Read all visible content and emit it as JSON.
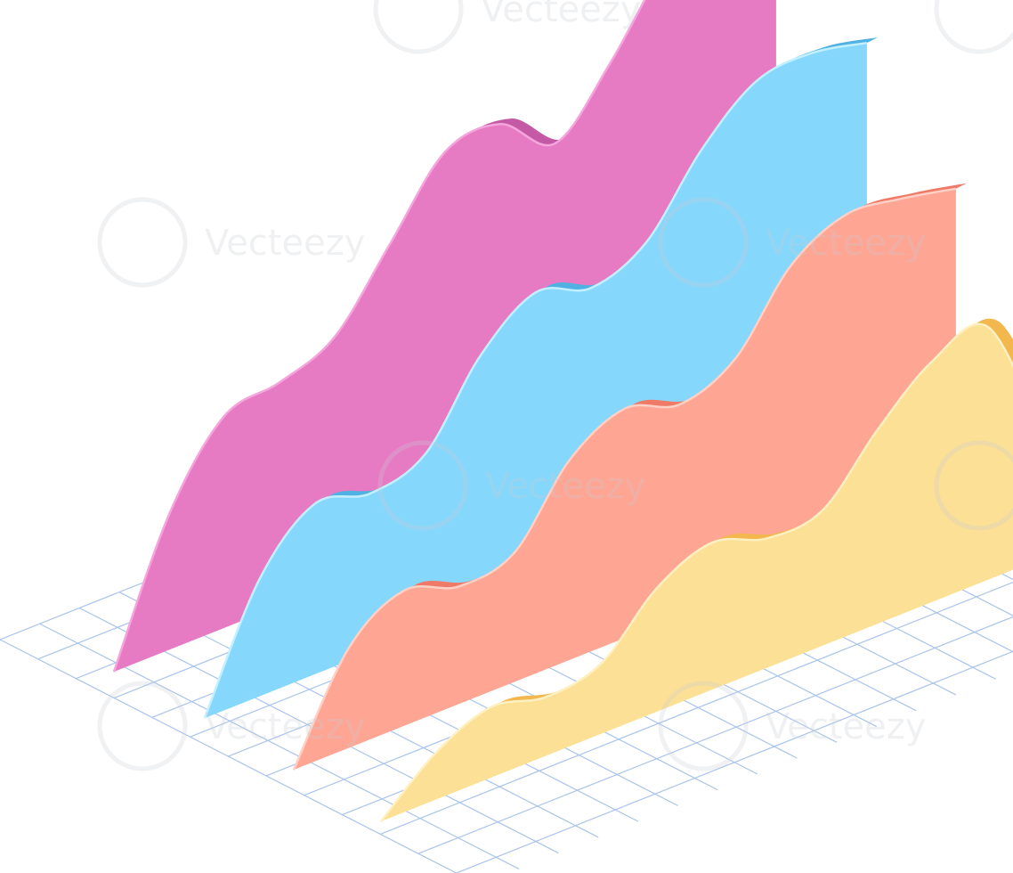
{
  "chart_data": {
    "type": "area",
    "style": "isometric-3d",
    "title": "",
    "xlabel": "",
    "ylabel": "",
    "grid": true,
    "legend": "none",
    "x": [
      0,
      1,
      2,
      3,
      4,
      5,
      6,
      7,
      8,
      9,
      10,
      11,
      12
    ],
    "ylim": [
      0,
      9
    ],
    "series": [
      {
        "values": [
          0,
          2.3,
          3.6,
          3.8,
          4.2,
          5.4,
          6.6,
          6.7,
          6.0,
          7.0,
          8.3,
          9.0,
          9.0
        ],
        "colors": {
          "face": "#e67bc4",
          "side": "#c45aa6",
          "top": "#f4a5dc"
        }
      },
      {
        "values": [
          0,
          2.0,
          2.9,
          2.7,
          3.0,
          4.3,
          5.0,
          4.7,
          5.1,
          6.3,
          7.1,
          7.2,
          7.0
        ],
        "colors": {
          "face": "#86d7fc",
          "side": "#52b1e3",
          "top": "#c2f0ff"
        }
      },
      {
        "values": [
          0,
          1.7,
          2.3,
          2.0,
          2.2,
          3.4,
          3.9,
          3.6,
          4.0,
          5.2,
          5.7,
          5.6,
          5.4
        ],
        "colors": {
          "face": "#fea594",
          "side": "#f07a68",
          "top": "#ffd0c4"
        }
      },
      {
        "values": [
          0,
          0.8,
          1.2,
          1.0,
          1.2,
          2.1,
          2.5,
          2.2,
          2.3,
          3.3,
          4.1,
          4.3,
          2.1
        ],
        "colors": {
          "face": "#fbe095",
          "side": "#f2b74d",
          "top": "#fff0c2"
        }
      }
    ]
  },
  "watermark": {
    "text": "Vecteezy",
    "icon": "vecteezy-logo-icon"
  }
}
